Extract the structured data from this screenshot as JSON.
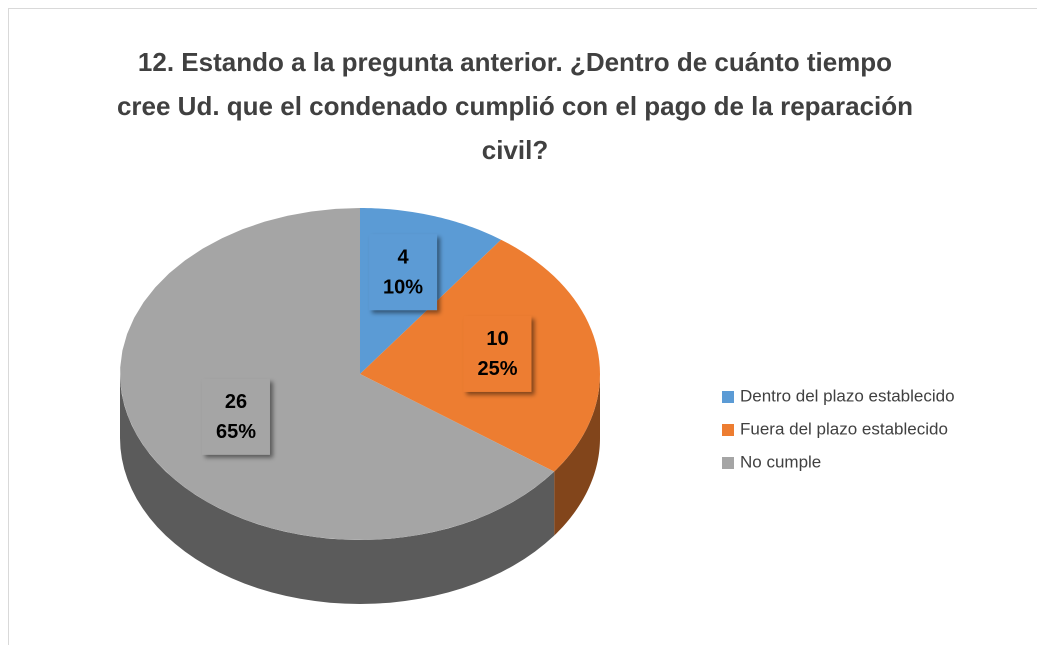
{
  "chart_data": {
    "type": "pie",
    "three_d": true,
    "title": "12. Estando a la pregunta anterior. ¿Dentro de cuánto tiempo cree Ud. que el condenado cumplió con el pago de la reparación civil?",
    "categories": [
      "Dentro del plazo establecido",
      "Fuera del plazo establecido",
      "No cumple"
    ],
    "values": [
      4,
      10,
      26
    ],
    "percent_values": [
      10,
      25,
      65
    ],
    "percent_labels": [
      "10%",
      "25%",
      "65%"
    ],
    "colors": [
      "#5b9bd5",
      "#ed7d31",
      "#a5a5a5"
    ],
    "legend": "right"
  }
}
